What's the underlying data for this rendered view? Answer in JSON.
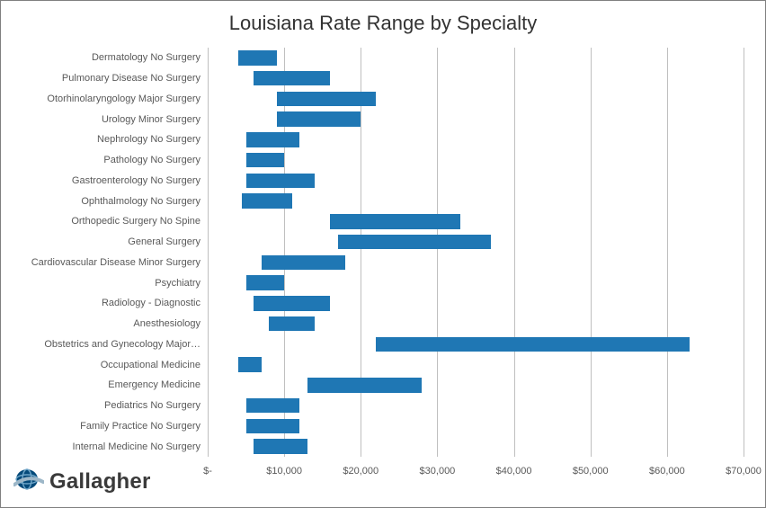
{
  "title": "Louisiana Rate Range by Specialty",
  "chart": {
    "type": "bar-range-horizontal",
    "bar_color": "#1f77b4",
    "grid_color": "#bfbfbf",
    "axis_label_color": "#595959",
    "title_color": "#333333",
    "title_fontsize": 22,
    "axis_fontsize": 11,
    "background_color": "#ffffff",
    "xmin": 0,
    "xmax": 70000,
    "xticks": [
      0,
      10000,
      20000,
      30000,
      40000,
      50000,
      60000,
      70000
    ],
    "xtick_labels": [
      "$-",
      "$10,000",
      "$20,000",
      "$30,000",
      "$40,000",
      "$50,000",
      "$60,000",
      "$70,000"
    ],
    "series": [
      {
        "label": "Dermatology No Surgery",
        "low": 4000,
        "high": 9000
      },
      {
        "label": "Pulmonary Disease No Surgery",
        "low": 6000,
        "high": 16000
      },
      {
        "label": "Otorhinolaryngology Major Surgery",
        "low": 9000,
        "high": 22000
      },
      {
        "label": "Urology Minor Surgery",
        "low": 9000,
        "high": 20000
      },
      {
        "label": "Nephrology No Surgery",
        "low": 5000,
        "high": 12000
      },
      {
        "label": "Pathology No Surgery",
        "low": 5000,
        "high": 10000
      },
      {
        "label": "Gastroenterology No Surgery",
        "low": 5000,
        "high": 14000
      },
      {
        "label": "Ophthalmology No Surgery",
        "low": 4500,
        "high": 11000
      },
      {
        "label": "Orthopedic Surgery No Spine",
        "low": 16000,
        "high": 33000
      },
      {
        "label": "General Surgery",
        "low": 17000,
        "high": 37000
      },
      {
        "label": "Cardiovascular Disease Minor Surgery",
        "low": 7000,
        "high": 18000
      },
      {
        "label": "Psychiatry",
        "low": 5000,
        "high": 10000
      },
      {
        "label": "Radiology - Diagnostic",
        "low": 6000,
        "high": 16000
      },
      {
        "label": "Anesthesiology",
        "low": 8000,
        "high": 14000
      },
      {
        "label": "Obstetrics and Gynecology Major…",
        "low": 22000,
        "high": 63000
      },
      {
        "label": "Occupational Medicine",
        "low": 4000,
        "high": 7000
      },
      {
        "label": "Emergency Medicine",
        "low": 13000,
        "high": 28000
      },
      {
        "label": "Pediatrics No Surgery",
        "low": 5000,
        "high": 12000
      },
      {
        "label": "Family Practice No Surgery",
        "low": 5000,
        "high": 12000
      },
      {
        "label": "Internal Medicine No Surgery",
        "low": 6000,
        "high": 13000
      }
    ]
  },
  "logo": {
    "text": "Gallagher",
    "globe_color_dark": "#044a7a",
    "globe_color_light": "#6fa6c9",
    "swoosh_color": "#9db7c8",
    "text_color": "#3a3a3a"
  }
}
